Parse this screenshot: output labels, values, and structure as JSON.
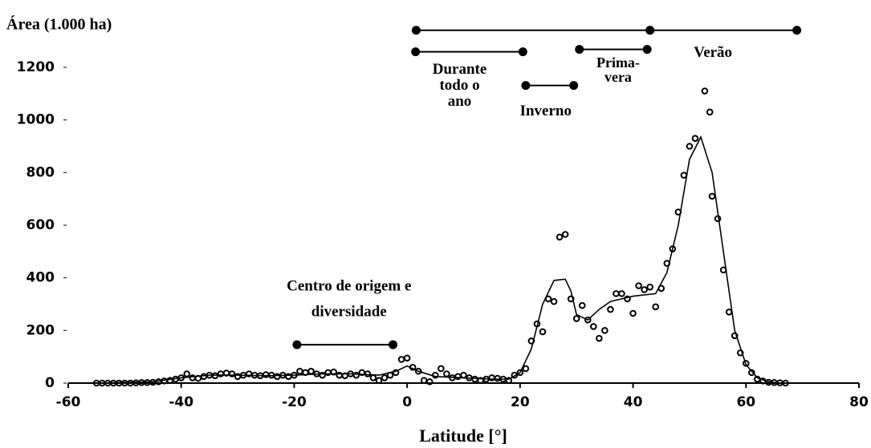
{
  "chart_data": {
    "type": "scatter",
    "title": "Área (1.000 ha)",
    "x_label": "Latitude [°]",
    "xlim": [
      -60,
      80
    ],
    "xticks": [
      -60,
      -40,
      -20,
      0,
      20,
      40,
      60,
      80
    ],
    "ylim": [
      0,
      1200
    ],
    "yticks": [
      0,
      200,
      400,
      600,
      800,
      1000,
      1200
    ],
    "color": "#000000",
    "points": {
      "x": [
        -55,
        -54,
        -53,
        -52,
        -51,
        -50,
        -49,
        -48,
        -47,
        -46,
        -45,
        -44,
        -43,
        -42,
        -41,
        -40,
        -39,
        -38,
        -37,
        -36,
        -35,
        -34,
        -33,
        -32,
        -31,
        -30,
        -29,
        -28,
        -27,
        -26,
        -25,
        -24,
        -23,
        -22,
        -21,
        -20,
        -19,
        -18,
        -17,
        -16,
        -15,
        -14,
        -13,
        -12,
        -11,
        -10,
        -9,
        -8,
        -7,
        -6,
        -5,
        -4,
        -3,
        -2,
        -1,
        0,
        1,
        2,
        3,
        4,
        5,
        6,
        7,
        8,
        9,
        10,
        11,
        12,
        13,
        14,
        15,
        16,
        17,
        18,
        19,
        20,
        21,
        22,
        23,
        24,
        25,
        26,
        27,
        28,
        29,
        30,
        31,
        32,
        33,
        34,
        35,
        36,
        37,
        38,
        39,
        40,
        41,
        42,
        43,
        44,
        45,
        46,
        47,
        48,
        49,
        50,
        51,
        52.7,
        53.6,
        54,
        55,
        56,
        57,
        58,
        59,
        60,
        61,
        62,
        63,
        64,
        65,
        66,
        67
      ],
      "values": [
        0,
        0,
        0,
        0,
        0,
        0,
        0,
        1,
        2,
        2,
        3,
        5,
        8,
        10,
        15,
        20,
        35,
        20,
        18,
        25,
        30,
        28,
        35,
        38,
        35,
        25,
        30,
        35,
        30,
        28,
        32,
        30,
        25,
        30,
        25,
        30,
        45,
        40,
        45,
        35,
        30,
        40,
        42,
        30,
        28,
        35,
        30,
        40,
        35,
        20,
        10,
        20,
        30,
        40,
        90,
        95,
        60,
        45,
        10,
        5,
        30,
        55,
        35,
        20,
        25,
        30,
        20,
        15,
        10,
        15,
        20,
        18,
        15,
        10,
        30,
        40,
        55,
        160,
        225,
        195,
        320,
        310,
        555,
        565,
        320,
        245,
        295,
        240,
        215,
        170,
        200,
        280,
        340,
        340,
        320,
        265,
        370,
        355,
        365,
        290,
        360,
        455,
        510,
        650,
        790,
        900,
        930,
        1110,
        1030,
        710,
        625,
        430,
        270,
        180,
        115,
        75,
        40,
        15,
        8,
        3,
        2,
        1,
        0
      ]
    },
    "fit": {
      "x": [
        -55,
        -50,
        -45,
        -40,
        -35,
        -30,
        -25,
        -20,
        -15,
        -10,
        -5,
        -2,
        0,
        2,
        5,
        10,
        15,
        18,
        20,
        22,
        24,
        26,
        28,
        29,
        30,
        32,
        34,
        36,
        40,
        44,
        46,
        48,
        50,
        52,
        54,
        56,
        58,
        60,
        62,
        64,
        66
      ],
      "values": [
        0,
        2,
        5,
        20,
        30,
        30,
        28,
        30,
        35,
        35,
        30,
        45,
        65,
        45,
        25,
        20,
        15,
        15,
        40,
        130,
        300,
        390,
        395,
        350,
        260,
        240,
        280,
        310,
        330,
        340,
        420,
        600,
        850,
        935,
        800,
        500,
        200,
        70,
        20,
        5,
        0
      ]
    },
    "intervals": [
      {
        "x": [
          1.6,
          43
        ],
        "y": 1341
      },
      {
        "x": [
          43,
          69
        ],
        "y": 1341,
        "label": [
          "Verão"
        ]
      },
      {
        "x": [
          1.5,
          20.5
        ],
        "y": 1259,
        "label": [
          "Durante",
          "todo o",
          "ano"
        ]
      },
      {
        "x": [
          30.5,
          42.5
        ],
        "y": 1268,
        "label": [
          "Prima-",
          "vera"
        ]
      },
      {
        "x": [
          21,
          29.5
        ],
        "y": 1131,
        "label": [
          "Inverno"
        ]
      },
      {
        "x": [
          -19.5,
          -2.5
        ],
        "y": 146,
        "label": [
          "Centro de origem e",
          "diversidade"
        ]
      }
    ]
  }
}
